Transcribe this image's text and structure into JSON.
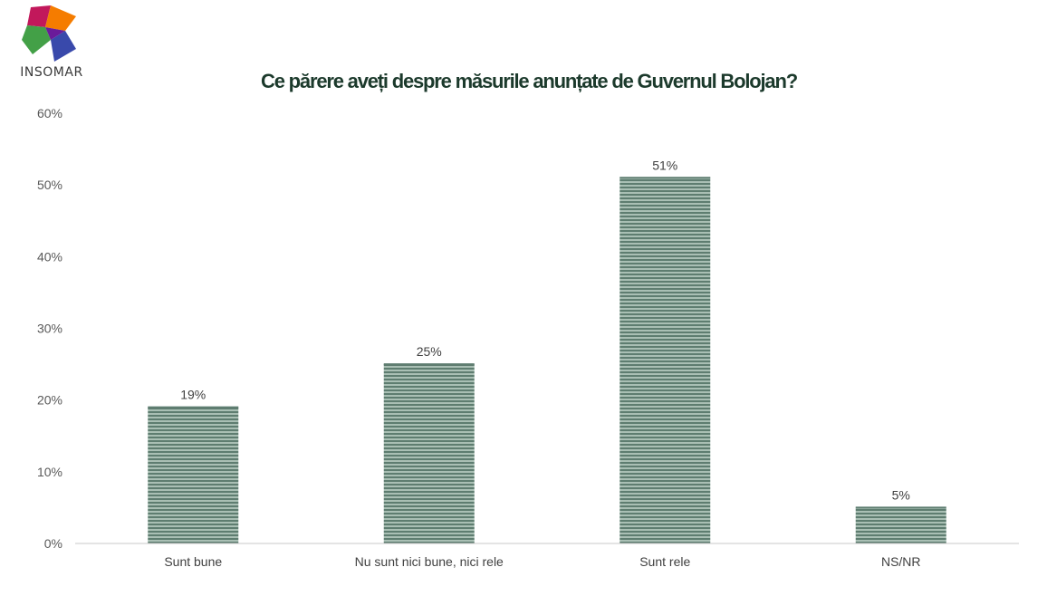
{
  "logo": {
    "text": "INSOMAR",
    "icon": "insomar-logo-icon"
  },
  "colors": {
    "title": "#1c3a2c",
    "bar_fill": "#a9bfb4",
    "bar_stripe": "#5e7d70",
    "axis_line": "#c8c8c8"
  },
  "chart_data": {
    "type": "bar",
    "title": "Ce părere aveți despre măsurile anunțate de Guvernul Bolojan?",
    "categories": [
      "Sunt bune",
      "Nu sunt nici bune, nici rele",
      "Sunt rele",
      "NS/NR"
    ],
    "values": [
      19,
      25,
      51,
      5
    ],
    "value_labels": [
      "19%",
      "25%",
      "51%",
      "5%"
    ],
    "ylim": [
      0,
      60
    ],
    "yticks": [
      0,
      10,
      20,
      30,
      40,
      50,
      60
    ],
    "ytick_labels": [
      "0%",
      "10%",
      "20%",
      "30%",
      "40%",
      "50%",
      "60%"
    ],
    "grid": false,
    "legend": "none",
    "bar_pattern": "horizontal stripes"
  }
}
